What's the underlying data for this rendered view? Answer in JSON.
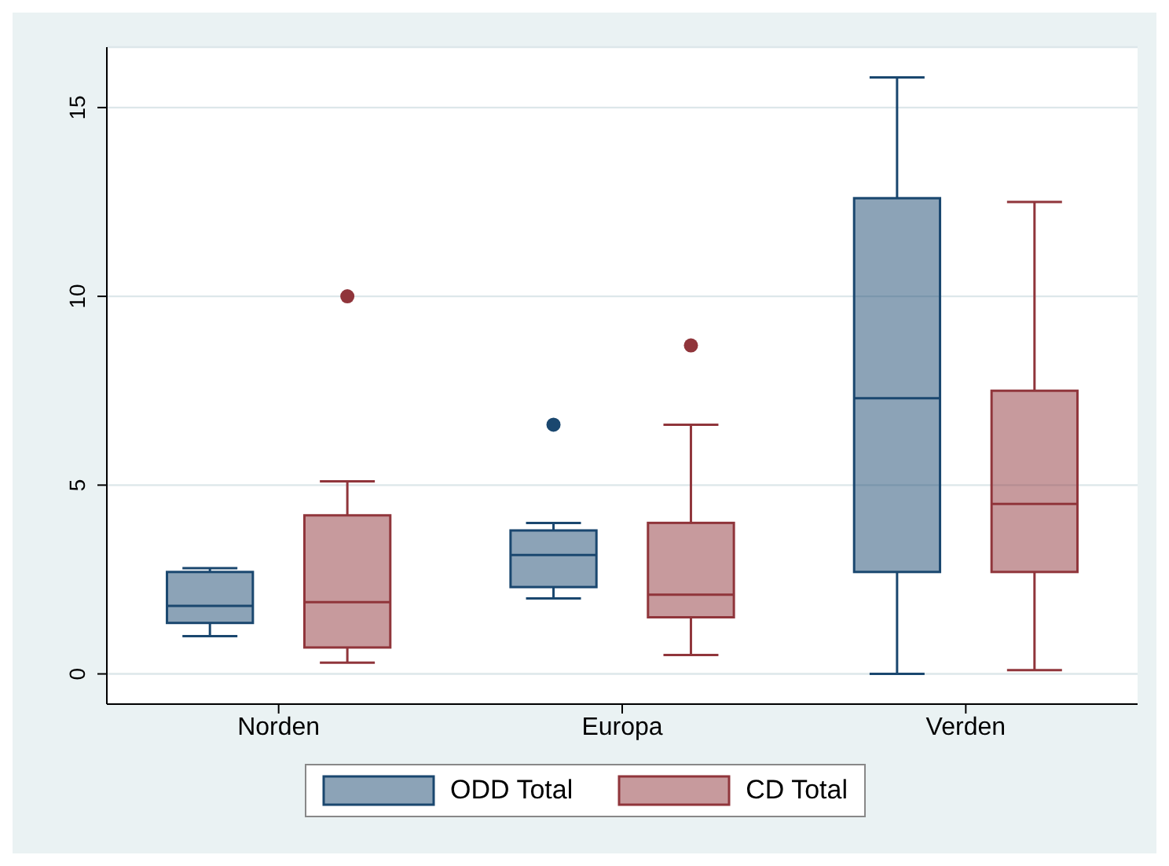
{
  "chart_data": {
    "type": "box",
    "categories": [
      "Norden",
      "Europa",
      "Verden"
    ],
    "series": [
      {
        "name": "ODD Total",
        "color": "#1a476f",
        "boxes": [
          {
            "low": 1.0,
            "q1": 1.35,
            "median": 1.8,
            "q3": 2.7,
            "high": 2.8
          },
          {
            "low": 2.0,
            "q1": 2.3,
            "median": 3.15,
            "q3": 3.8,
            "high": 4.0,
            "outliers": [
              6.6
            ]
          },
          {
            "low": 0,
            "q1": 2.7,
            "median": 7.3,
            "q3": 12.6,
            "high": 15.8
          }
        ]
      },
      {
        "name": "CD Total",
        "color": "#90353b",
        "boxes": [
          {
            "low": 0.3,
            "q1": 0.7,
            "median": 1.9,
            "q3": 4.2,
            "high": 5.1,
            "outliers": [
              10.0
            ]
          },
          {
            "low": 0.5,
            "q1": 1.5,
            "median": 2.1,
            "q3": 4.0,
            "high": 6.6,
            "outliers": [
              8.7
            ]
          },
          {
            "low": 0.1,
            "q1": 2.7,
            "median": 4.5,
            "q3": 7.5,
            "high": 12.5
          }
        ]
      }
    ],
    "ylim": [
      -0.8,
      16.6
    ],
    "yticks": [
      0,
      5,
      10,
      15
    ],
    "grid": "y",
    "legend": "bottom"
  }
}
